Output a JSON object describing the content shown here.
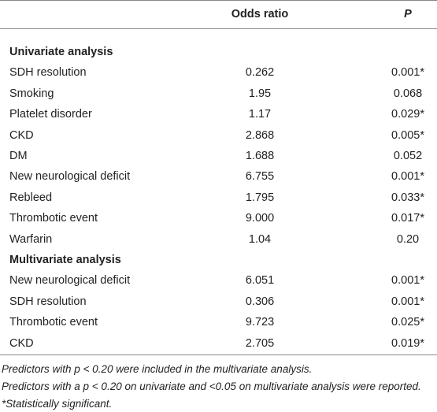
{
  "table": {
    "header": [
      "Odds ratio",
      "P"
    ],
    "sections": [
      {
        "title": "Univariate analysis",
        "rows": [
          [
            "SDH resolution",
            "0.262",
            "0.001*"
          ],
          [
            "Smoking",
            "1.95",
            "0.068"
          ],
          [
            "Platelet disorder",
            "1.17",
            "0.029*"
          ],
          [
            "CKD",
            "2.868",
            "0.005*"
          ],
          [
            "DM",
            "1.688",
            "0.052"
          ],
          [
            "New neurological deficit",
            "6.755",
            "0.001*"
          ],
          [
            "Rebleed",
            "1.795",
            "0.033*"
          ],
          [
            "Thrombotic event",
            "9.000",
            "0.017*"
          ],
          [
            "Warfarin",
            "1.04",
            "0.20"
          ]
        ]
      },
      {
        "title": "Multivariate analysis",
        "rows": [
          [
            "New neurological deficit",
            "6.051",
            "0.001*"
          ],
          [
            "SDH resolution",
            "0.306",
            "0.001*"
          ],
          [
            "Thrombotic event",
            "9.723",
            "0.025*"
          ],
          [
            "CKD",
            "2.705",
            "0.019*"
          ]
        ]
      }
    ],
    "notes": [
      "Predictors with p < 0.20 were included in the multivariate analysis.",
      "Predictors with a p < 0.20 on univariate and <0.05 on multivariate analysis were reported.",
      "*Statistically significant."
    ]
  }
}
